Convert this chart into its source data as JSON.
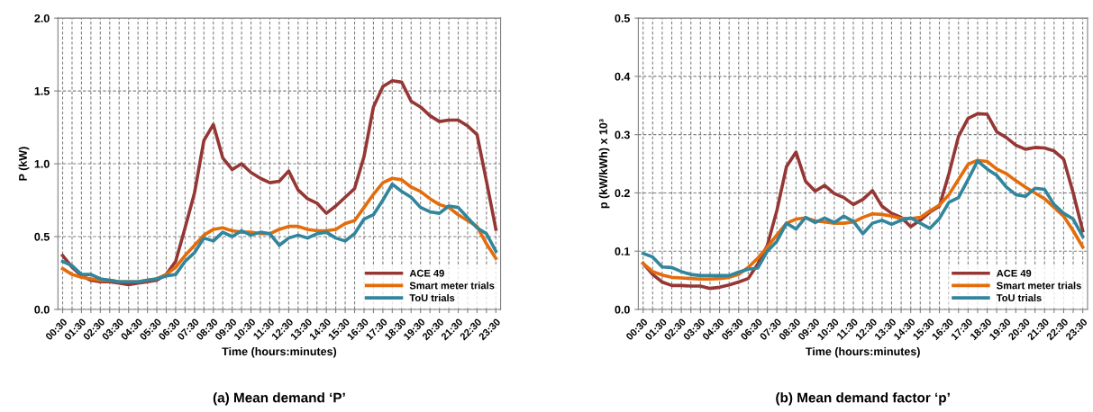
{
  "chart_data": [
    {
      "type": "line",
      "title": "(a) Mean demand ‘P’",
      "xlabel": "Time (hours:minutes)",
      "ylabel": "P (kW)",
      "categories": [
        "00:30",
        null,
        "01:30",
        null,
        "02:30",
        null,
        "03:30",
        null,
        "04:30",
        null,
        "05:30",
        null,
        "06:30",
        null,
        "07:30",
        null,
        "08:30",
        null,
        "09:30",
        null,
        "10:30",
        null,
        "11:30",
        null,
        "12:30",
        null,
        "13:30",
        null,
        "14:30",
        null,
        "15:30",
        null,
        "16:30",
        null,
        "17:30",
        null,
        "18:30",
        null,
        "19:30",
        null,
        "20:30",
        null,
        "21:30",
        null,
        "22:30",
        null,
        "23:30"
      ],
      "ylim": [
        0,
        2
      ],
      "yticks": [
        {
          "value": 0,
          "label": "0.0"
        },
        {
          "value": 0.5,
          "label": "0.5"
        },
        {
          "value": 1,
          "label": "1.0"
        },
        {
          "value": 1.5,
          "label": "1.5"
        },
        {
          "value": 2,
          "label": "2.0"
        }
      ],
      "grid": true,
      "legend": "bottom right",
      "marker": "none",
      "line_style": "solid",
      "series": [
        {
          "name": "ACE 49",
          "color": "#953735",
          "values": [
            0.37,
            0.29,
            0.23,
            0.2,
            0.19,
            0.19,
            0.18,
            0.17,
            0.18,
            0.19,
            0.2,
            0.24,
            0.33,
            0.56,
            0.8,
            1.16,
            1.27,
            1.04,
            0.96,
            1.0,
            0.94,
            0.9,
            0.87,
            0.88,
            0.95,
            0.82,
            0.76,
            0.73,
            0.66,
            0.71,
            0.77,
            0.83,
            1.05,
            1.39,
            1.53,
            1.57,
            1.56,
            1.43,
            1.39,
            1.33,
            1.29,
            1.3,
            1.3,
            1.26,
            1.2,
            0.88,
            0.55
          ]
        },
        {
          "name": "Smart meter trials",
          "color": "#e46c0a",
          "values": [
            0.28,
            0.24,
            0.22,
            0.21,
            0.2,
            0.2,
            0.19,
            0.19,
            0.19,
            0.2,
            0.21,
            0.24,
            0.29,
            0.37,
            0.44,
            0.51,
            0.55,
            0.56,
            0.54,
            0.53,
            0.53,
            0.52,
            0.52,
            0.55,
            0.57,
            0.57,
            0.55,
            0.54,
            0.54,
            0.55,
            0.59,
            0.61,
            0.7,
            0.79,
            0.87,
            0.9,
            0.89,
            0.84,
            0.81,
            0.76,
            0.72,
            0.7,
            0.65,
            0.61,
            0.57,
            0.45,
            0.35
          ]
        },
        {
          "name": "ToU trials",
          "color": "#31859c",
          "values": [
            0.33,
            0.3,
            0.24,
            0.24,
            0.21,
            0.2,
            0.19,
            0.19,
            0.19,
            0.2,
            0.21,
            0.23,
            0.24,
            0.33,
            0.39,
            0.49,
            0.47,
            0.53,
            0.5,
            0.54,
            0.51,
            0.53,
            0.52,
            0.44,
            0.49,
            0.51,
            0.49,
            0.52,
            0.53,
            0.49,
            0.47,
            0.52,
            0.62,
            0.65,
            0.75,
            0.86,
            0.81,
            0.77,
            0.7,
            0.67,
            0.66,
            0.71,
            0.7,
            0.63,
            0.56,
            0.52,
            0.4
          ]
        }
      ]
    },
    {
      "type": "line",
      "title": "(b) Mean demand factor ‘p’",
      "xlabel": "Time (hours:minutes)",
      "ylabel": "p (kW/kWh) x 10³",
      "categories": [
        "00:30",
        null,
        "01:30",
        null,
        "02:30",
        null,
        "03:30",
        null,
        "04:30",
        null,
        "05:30",
        null,
        "06:30",
        null,
        "07:30",
        null,
        "08:30",
        null,
        "09:30",
        null,
        "10:30",
        null,
        "11:30",
        null,
        "12:30",
        null,
        "13:30",
        null,
        "14:30",
        null,
        "15:30",
        null,
        "16:30",
        null,
        "17:30",
        null,
        "18:30",
        null,
        "19:30",
        null,
        "20:30",
        null,
        "21:30",
        null,
        "22:30",
        null,
        "23:30"
      ],
      "ylim": [
        0,
        0.5
      ],
      "yticks": [
        {
          "value": 0,
          "label": "0.0"
        },
        0.1,
        0.2,
        0.3,
        0.4,
        0.5
      ],
      "grid": true,
      "legend": "bottom right",
      "marker": "none",
      "line_style": "solid",
      "series": [
        {
          "name": "ACE 49",
          "color": "#953735",
          "values": [
            0.079,
            0.06,
            0.047,
            0.041,
            0.041,
            0.04,
            0.04,
            0.036,
            0.038,
            0.042,
            0.047,
            0.053,
            0.078,
            0.11,
            0.17,
            0.245,
            0.27,
            0.22,
            0.203,
            0.213,
            0.199,
            0.192,
            0.18,
            0.189,
            0.204,
            0.177,
            0.165,
            0.158,
            0.142,
            0.153,
            0.167,
            0.177,
            0.233,
            0.297,
            0.328,
            0.336,
            0.335,
            0.305,
            0.295,
            0.282,
            0.275,
            0.278,
            0.277,
            0.272,
            0.258,
            0.2,
            0.135
          ]
        },
        {
          "name": "Smart meter trials",
          "color": "#e46c0a",
          "values": [
            0.079,
            0.065,
            0.059,
            0.055,
            0.054,
            0.053,
            0.052,
            0.052,
            0.053,
            0.055,
            0.06,
            0.072,
            0.088,
            0.107,
            0.128,
            0.148,
            0.155,
            0.157,
            0.152,
            0.15,
            0.148,
            0.148,
            0.15,
            0.158,
            0.164,
            0.163,
            0.16,
            0.156,
            0.156,
            0.158,
            0.169,
            0.179,
            0.197,
            0.223,
            0.249,
            0.256,
            0.254,
            0.241,
            0.233,
            0.221,
            0.21,
            0.2,
            0.19,
            0.175,
            0.16,
            0.135,
            0.107
          ]
        },
        {
          "name": "ToU trials",
          "color": "#31859c",
          "values": [
            0.096,
            0.09,
            0.073,
            0.072,
            0.065,
            0.06,
            0.058,
            0.058,
            0.058,
            0.058,
            0.064,
            0.069,
            0.071,
            0.1,
            0.117,
            0.148,
            0.138,
            0.158,
            0.149,
            0.157,
            0.149,
            0.16,
            0.151,
            0.13,
            0.148,
            0.153,
            0.146,
            0.153,
            0.157,
            0.148,
            0.139,
            0.156,
            0.184,
            0.192,
            0.223,
            0.255,
            0.241,
            0.23,
            0.21,
            0.197,
            0.194,
            0.208,
            0.206,
            0.18,
            0.165,
            0.155,
            0.125
          ]
        }
      ]
    }
  ]
}
